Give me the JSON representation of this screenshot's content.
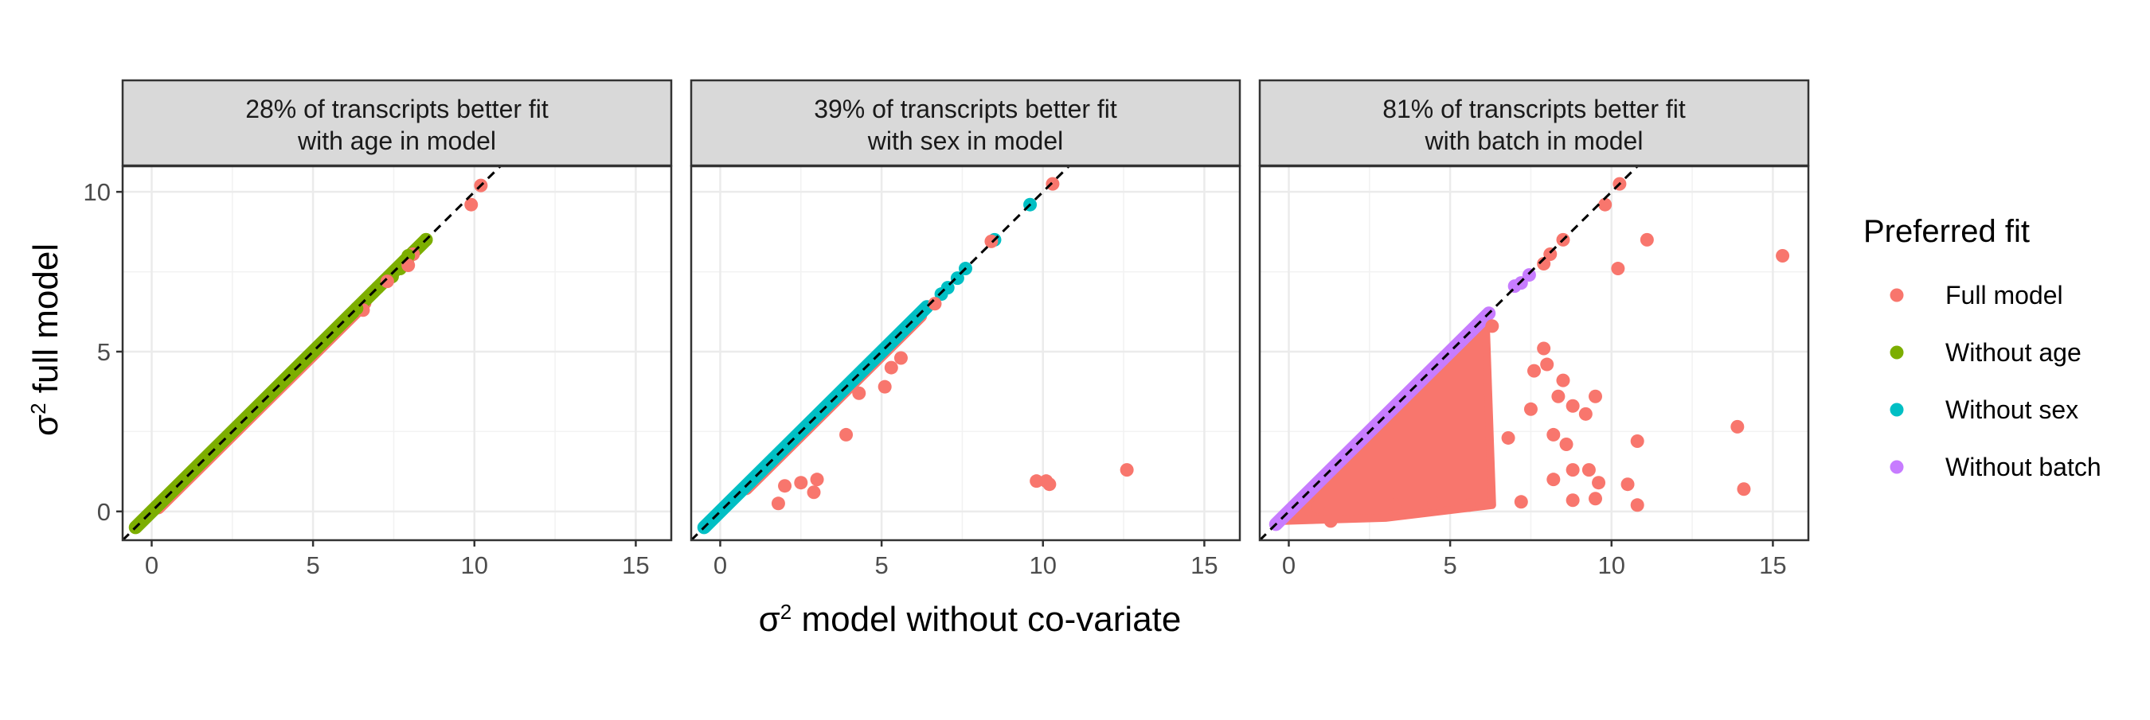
{
  "chart_data": {
    "type": "scatter",
    "xlabel_symbol": "σ",
    "xlabel_sup": "2",
    "xlabel_text": " model without co-variate",
    "ylabel_symbol": "σ",
    "ylabel_sup": "2",
    "ylabel_text": " full model",
    "xlim": [
      -0.9,
      16.1
    ],
    "ylim": [
      -0.9,
      10.8
    ],
    "x_ticks": [
      0,
      5,
      10,
      15
    ],
    "y_ticks": [
      0,
      5,
      10
    ],
    "grid": true,
    "reference_line": {
      "type": "identity",
      "style": "dashed",
      "color": "#000000"
    },
    "legend": {
      "title": "Preferred fit",
      "position": "right",
      "entries": [
        {
          "label": "Full model",
          "color": "#F8766D"
        },
        {
          "label": "Without age",
          "color": "#7CAE00"
        },
        {
          "label": "Without sex",
          "color": "#00BFC4"
        },
        {
          "label": "Without batch",
          "color": "#C77CFF"
        }
      ]
    },
    "panels": [
      {
        "strip_line1": "28% of transcripts better fit",
        "strip_line2": "with age in model",
        "preferred_reduced": "Without age",
        "diag_reduced": [
          [
            -0.5,
            8.5
          ]
        ],
        "diag_full": [
          [
            0.2,
            6.6
          ]
        ],
        "points": [
          {
            "x": 10.2,
            "y": 10.2,
            "s": "Full model"
          },
          {
            "x": 9.9,
            "y": 9.6,
            "s": "Full model"
          },
          {
            "x": 8.5,
            "y": 8.5,
            "s": "Without age"
          },
          {
            "x": 8.1,
            "y": 8.05,
            "s": "Full model"
          },
          {
            "x": 7.95,
            "y": 8.0,
            "s": "Without age"
          },
          {
            "x": 7.7,
            "y": 7.6,
            "s": "Without age"
          },
          {
            "x": 7.45,
            "y": 7.35,
            "s": "Without age"
          },
          {
            "x": 7.2,
            "y": 7.2,
            "s": "Without age"
          },
          {
            "x": 7.0,
            "y": 7.0,
            "s": "Without age"
          },
          {
            "x": 6.85,
            "y": 6.85,
            "s": "Without age"
          },
          {
            "x": 6.55,
            "y": 6.3,
            "s": "Full model"
          },
          {
            "x": 6.35,
            "y": 6.35,
            "s": "Without age"
          },
          {
            "x": 7.3,
            "y": 7.2,
            "s": "Full model"
          },
          {
            "x": 7.95,
            "y": 7.7,
            "s": "Full model"
          }
        ]
      },
      {
        "strip_line1": "39% of transcripts better fit",
        "strip_line2": "with sex in model",
        "preferred_reduced": "Without sex",
        "diag_reduced": [
          [
            -0.5,
            6.4
          ]
        ],
        "diag_full": [
          [
            0.8,
            6.2
          ]
        ],
        "points": [
          {
            "x": 10.3,
            "y": 10.25,
            "s": "Full model"
          },
          {
            "x": 9.6,
            "y": 9.6,
            "s": "Without sex"
          },
          {
            "x": 8.5,
            "y": 8.5,
            "s": "Without sex"
          },
          {
            "x": 8.4,
            "y": 8.45,
            "s": "Full model"
          },
          {
            "x": 7.6,
            "y": 7.6,
            "s": "Without sex"
          },
          {
            "x": 7.35,
            "y": 7.3,
            "s": "Without sex"
          },
          {
            "x": 7.05,
            "y": 7.0,
            "s": "Without sex"
          },
          {
            "x": 6.85,
            "y": 6.8,
            "s": "Without sex"
          },
          {
            "x": 6.65,
            "y": 6.5,
            "s": "Full model"
          },
          {
            "x": 5.3,
            "y": 4.5,
            "s": "Full model"
          },
          {
            "x": 5.1,
            "y": 3.9,
            "s": "Full model"
          },
          {
            "x": 4.3,
            "y": 3.7,
            "s": "Full model"
          },
          {
            "x": 5.6,
            "y": 4.8,
            "s": "Full model"
          },
          {
            "x": 3.9,
            "y": 2.4,
            "s": "Full model"
          },
          {
            "x": 2.0,
            "y": 0.8,
            "s": "Full model"
          },
          {
            "x": 2.5,
            "y": 0.9,
            "s": "Full model"
          },
          {
            "x": 2.9,
            "y": 0.6,
            "s": "Full model"
          },
          {
            "x": 3.0,
            "y": 1.0,
            "s": "Full model"
          },
          {
            "x": 1.8,
            "y": 0.25,
            "s": "Full model"
          },
          {
            "x": 9.8,
            "y": 0.95,
            "s": "Full model"
          },
          {
            "x": 10.1,
            "y": 0.95,
            "s": "Full model"
          },
          {
            "x": 10.2,
            "y": 0.85,
            "s": "Full model"
          },
          {
            "x": 12.6,
            "y": 1.3,
            "s": "Full model"
          }
        ]
      },
      {
        "strip_line1": "81% of transcripts better fit",
        "strip_line2": "with batch in model",
        "preferred_reduced": "Without batch",
        "diag_reduced": [
          [
            -0.4,
            6.2
          ]
        ],
        "diag_full": [],
        "points": [
          {
            "x": 7.0,
            "y": 7.05,
            "s": "Without batch"
          },
          {
            "x": 7.2,
            "y": 7.15,
            "s": "Without batch"
          },
          {
            "x": 7.45,
            "y": 7.4,
            "s": "Without batch"
          },
          {
            "x": 10.25,
            "y": 10.25,
            "s": "Full model"
          },
          {
            "x": 9.8,
            "y": 9.6,
            "s": "Full model"
          },
          {
            "x": 8.5,
            "y": 8.5,
            "s": "Full model"
          },
          {
            "x": 8.1,
            "y": 8.05,
            "s": "Full model"
          },
          {
            "x": 7.9,
            "y": 7.75,
            "s": "Full model"
          },
          {
            "x": 10.2,
            "y": 7.6,
            "s": "Full model"
          },
          {
            "x": 11.1,
            "y": 8.5,
            "s": "Full model"
          },
          {
            "x": 15.3,
            "y": 8.0,
            "s": "Full model"
          },
          {
            "x": 13.9,
            "y": 2.65,
            "s": "Full model"
          },
          {
            "x": 14.1,
            "y": 0.7,
            "s": "Full model"
          },
          {
            "x": 10.8,
            "y": 2.2,
            "s": "Full model"
          },
          {
            "x": 10.5,
            "y": 0.85,
            "s": "Full model"
          },
          {
            "x": 10.8,
            "y": 0.2,
            "s": "Full model"
          },
          {
            "x": 9.3,
            "y": 1.3,
            "s": "Full model"
          },
          {
            "x": 9.6,
            "y": 0.9,
            "s": "Full model"
          },
          {
            "x": 9.5,
            "y": 0.4,
            "s": "Full model"
          },
          {
            "x": 8.8,
            "y": 0.35,
            "s": "Full model"
          },
          {
            "x": 8.8,
            "y": 1.3,
            "s": "Full model"
          },
          {
            "x": 9.5,
            "y": 3.6,
            "s": "Full model"
          },
          {
            "x": 9.2,
            "y": 3.05,
            "s": "Full model"
          },
          {
            "x": 8.8,
            "y": 3.3,
            "s": "Full model"
          },
          {
            "x": 8.5,
            "y": 4.1,
            "s": "Full model"
          },
          {
            "x": 8.6,
            "y": 2.1,
            "s": "Full model"
          },
          {
            "x": 8.2,
            "y": 2.4,
            "s": "Full model"
          },
          {
            "x": 8.2,
            "y": 1.0,
            "s": "Full model"
          },
          {
            "x": 8.35,
            "y": 3.6,
            "s": "Full model"
          },
          {
            "x": 7.9,
            "y": 5.1,
            "s": "Full model"
          },
          {
            "x": 8.0,
            "y": 4.6,
            "s": "Full model"
          },
          {
            "x": 7.6,
            "y": 4.4,
            "s": "Full model"
          },
          {
            "x": 7.5,
            "y": 3.2,
            "s": "Full model"
          },
          {
            "x": 7.2,
            "y": 0.3,
            "s": "Full model"
          },
          {
            "x": 6.8,
            "y": 2.3,
            "s": "Full model"
          },
          {
            "x": 5.6,
            "y": 0.2,
            "s": "Full model"
          },
          {
            "x": 4.5,
            "y": 0.25,
            "s": "Full model"
          },
          {
            "x": 3.3,
            "y": 0.2,
            "s": "Full model"
          },
          {
            "x": 1.3,
            "y": -0.3,
            "s": "Full model"
          },
          {
            "x": 0.9,
            "y": 0.15,
            "s": "Full model"
          },
          {
            "x": 6.3,
            "y": 5.8,
            "s": "Full model"
          }
        ]
      }
    ]
  }
}
